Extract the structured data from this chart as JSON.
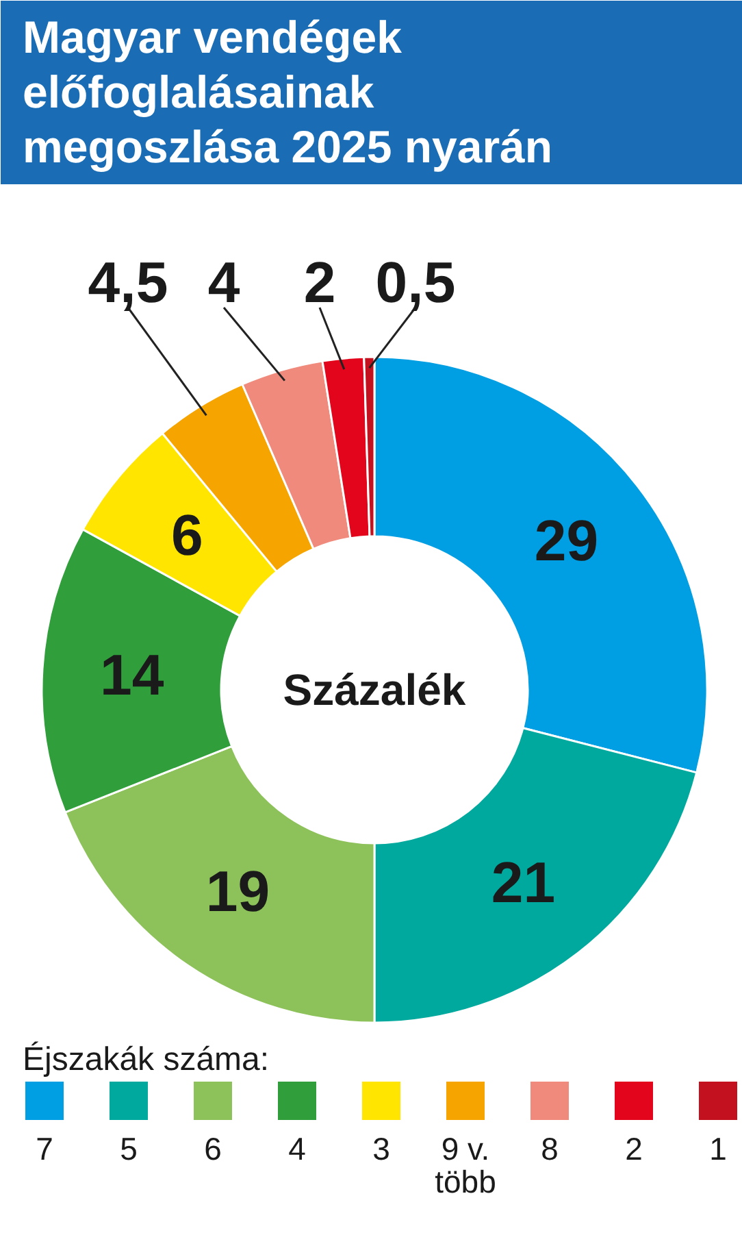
{
  "chart_data": {
    "type": "donut",
    "title": "Magyar vendégek előfoglalásainak megoszlása 2025 nyarán",
    "categories": [
      "7",
      "5",
      "6",
      "4",
      "3",
      "9 v. több",
      "8",
      "2",
      "1"
    ],
    "values": [
      29,
      21,
      19,
      14,
      6,
      4.5,
      4,
      2,
      0.5
    ],
    "colors": [
      "#009ee2",
      "#00a99d",
      "#8dc159",
      "#2f9e3b",
      "#ffe500",
      "#f6a500",
      "#ef8a7c",
      "#e3051b",
      "#c4111f"
    ],
    "value_labels": [
      "29",
      "21",
      "19",
      "14",
      "6",
      "4,5",
      "4",
      "2",
      "0,5"
    ],
    "legend_title": "Éjszakák száma:",
    "legend": "bottom",
    "annotations": [
      "Százalék"
    ]
  }
}
